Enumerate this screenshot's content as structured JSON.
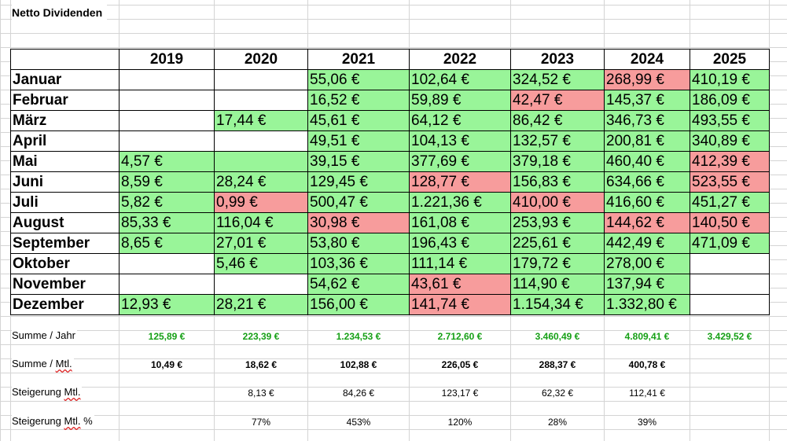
{
  "sheet": {
    "title": "Netto Dividenden"
  },
  "table": {
    "years": [
      "2019",
      "2020",
      "2021",
      "2022",
      "2023",
      "2024",
      "2025"
    ],
    "rows": [
      {
        "month": "Januar",
        "cells": [
          {
            "v": "",
            "c": ""
          },
          {
            "v": "",
            "c": ""
          },
          {
            "v": "55,06 €",
            "c": "green"
          },
          {
            "v": "102,64 €",
            "c": "green"
          },
          {
            "v": "324,52 €",
            "c": "green"
          },
          {
            "v": "268,99 €",
            "c": "red"
          },
          {
            "v": "410,19 €",
            "c": "green"
          }
        ]
      },
      {
        "month": "Februar",
        "cells": [
          {
            "v": "",
            "c": ""
          },
          {
            "v": "",
            "c": ""
          },
          {
            "v": "16,52 €",
            "c": "green"
          },
          {
            "v": "59,89 €",
            "c": "green"
          },
          {
            "v": "42,47 €",
            "c": "red"
          },
          {
            "v": "145,37 €",
            "c": "green"
          },
          {
            "v": "186,09 €",
            "c": "green"
          }
        ]
      },
      {
        "month": "März",
        "cells": [
          {
            "v": "",
            "c": ""
          },
          {
            "v": "17,44 €",
            "c": "green"
          },
          {
            "v": "45,61 €",
            "c": "green"
          },
          {
            "v": "64,12 €",
            "c": "green"
          },
          {
            "v": "86,42 €",
            "c": "green"
          },
          {
            "v": "346,73 €",
            "c": "green"
          },
          {
            "v": "493,55 €",
            "c": "green"
          }
        ]
      },
      {
        "month": "April",
        "cells": [
          {
            "v": "",
            "c": ""
          },
          {
            "v": "",
            "c": ""
          },
          {
            "v": "49,51 €",
            "c": "green"
          },
          {
            "v": "104,13 €",
            "c": "green"
          },
          {
            "v": "132,57 €",
            "c": "green"
          },
          {
            "v": "200,81 €",
            "c": "green"
          },
          {
            "v": "340,89 €",
            "c": "green"
          }
        ]
      },
      {
        "month": "Mai",
        "cells": [
          {
            "v": "4,57 €",
            "c": "green"
          },
          {
            "v": "",
            "c": "green"
          },
          {
            "v": "39,15 €",
            "c": "green"
          },
          {
            "v": "377,69 €",
            "c": "green"
          },
          {
            "v": "379,18 €",
            "c": "green"
          },
          {
            "v": "460,40 €",
            "c": "green"
          },
          {
            "v": "412,39 €",
            "c": "red"
          }
        ]
      },
      {
        "month": "Juni",
        "cells": [
          {
            "v": "8,59 €",
            "c": "green"
          },
          {
            "v": "28,24 €",
            "c": "green"
          },
          {
            "v": "129,45 €",
            "c": "green"
          },
          {
            "v": "128,77 €",
            "c": "red"
          },
          {
            "v": "156,83 €",
            "c": "green"
          },
          {
            "v": "634,66 €",
            "c": "green"
          },
          {
            "v": "523,55 €",
            "c": "red"
          }
        ]
      },
      {
        "month": "Juli",
        "cells": [
          {
            "v": "5,82 €",
            "c": "green"
          },
          {
            "v": "0,99 €",
            "c": "red"
          },
          {
            "v": "500,47 €",
            "c": "green"
          },
          {
            "v": "1.221,36 €",
            "c": "green"
          },
          {
            "v": "410,00 €",
            "c": "red"
          },
          {
            "v": "416,60 €",
            "c": "green"
          },
          {
            "v": "451,27 €",
            "c": "green"
          }
        ]
      },
      {
        "month": "August",
        "cells": [
          {
            "v": "85,33 €",
            "c": "green"
          },
          {
            "v": "116,04 €",
            "c": "green"
          },
          {
            "v": "30,98 €",
            "c": "red"
          },
          {
            "v": "161,08 €",
            "c": "green"
          },
          {
            "v": "253,93 €",
            "c": "green"
          },
          {
            "v": "144,62 €",
            "c": "red"
          },
          {
            "v": "140,50 €",
            "c": "red"
          }
        ]
      },
      {
        "month": "September",
        "cells": [
          {
            "v": "8,65 €",
            "c": "green"
          },
          {
            "v": "27,01 €",
            "c": "green"
          },
          {
            "v": "53,80 €",
            "c": "green"
          },
          {
            "v": "196,43 €",
            "c": "green"
          },
          {
            "v": "225,61 €",
            "c": "green"
          },
          {
            "v": "442,49 €",
            "c": "green"
          },
          {
            "v": "471,09 €",
            "c": "green"
          }
        ]
      },
      {
        "month": "Oktober",
        "cells": [
          {
            "v": "",
            "c": ""
          },
          {
            "v": "5,46 €",
            "c": "green"
          },
          {
            "v": "103,36 €",
            "c": "green"
          },
          {
            "v": "111,14 €",
            "c": "green"
          },
          {
            "v": "179,72 €",
            "c": "green"
          },
          {
            "v": "278,00 €",
            "c": "green"
          },
          {
            "v": "",
            "c": ""
          }
        ]
      },
      {
        "month": "November",
        "cells": [
          {
            "v": "",
            "c": ""
          },
          {
            "v": "",
            "c": ""
          },
          {
            "v": "54,62 €",
            "c": "green"
          },
          {
            "v": "43,61 €",
            "c": "red"
          },
          {
            "v": "114,90 €",
            "c": "green"
          },
          {
            "v": "137,94 €",
            "c": "green"
          },
          {
            "v": "",
            "c": ""
          }
        ]
      },
      {
        "month": "Dezember",
        "cells": [
          {
            "v": "12,93 €",
            "c": "green"
          },
          {
            "v": "28,21 €",
            "c": "green"
          },
          {
            "v": "156,00 €",
            "c": "green"
          },
          {
            "v": "141,74 €",
            "c": "red"
          },
          {
            "v": "1.154,34 €",
            "c": "green"
          },
          {
            "v": "1.332,80 €",
            "c": "green"
          },
          {
            "v": "",
            "c": ""
          }
        ]
      }
    ]
  },
  "summary": {
    "sum_year": {
      "label": "Summe / Jahr",
      "values": [
        "125,89 €",
        "223,39 €",
        "1.234,53 €",
        "2.712,60 €",
        "3.460,49 €",
        "4.809,41 €",
        "3.429,52 €"
      ]
    },
    "sum_month": {
      "label_main": "Summe / ",
      "label_underlined": "Mtl.",
      "values": [
        "10,49 €",
        "18,62 €",
        "102,88 €",
        "226,05 €",
        "288,37 €",
        "400,78 €",
        ""
      ]
    },
    "increase_month": {
      "label_main": "Steigerung ",
      "label_underlined": "Mtl.",
      "values": [
        "",
        "8,13 €",
        "84,26 €",
        "123,17 €",
        "62,32 €",
        "112,41 €",
        ""
      ]
    },
    "increase_pct": {
      "label_main": "Steigerung ",
      "label_underlined": "Mtl.",
      "label_suffix": " %",
      "values": [
        "",
        "77%",
        "453%",
        "120%",
        "28%",
        "39%",
        ""
      ]
    }
  },
  "colors": {
    "green": "#99f599",
    "red": "#f79c9c",
    "sum_green_text": "#16a016"
  }
}
